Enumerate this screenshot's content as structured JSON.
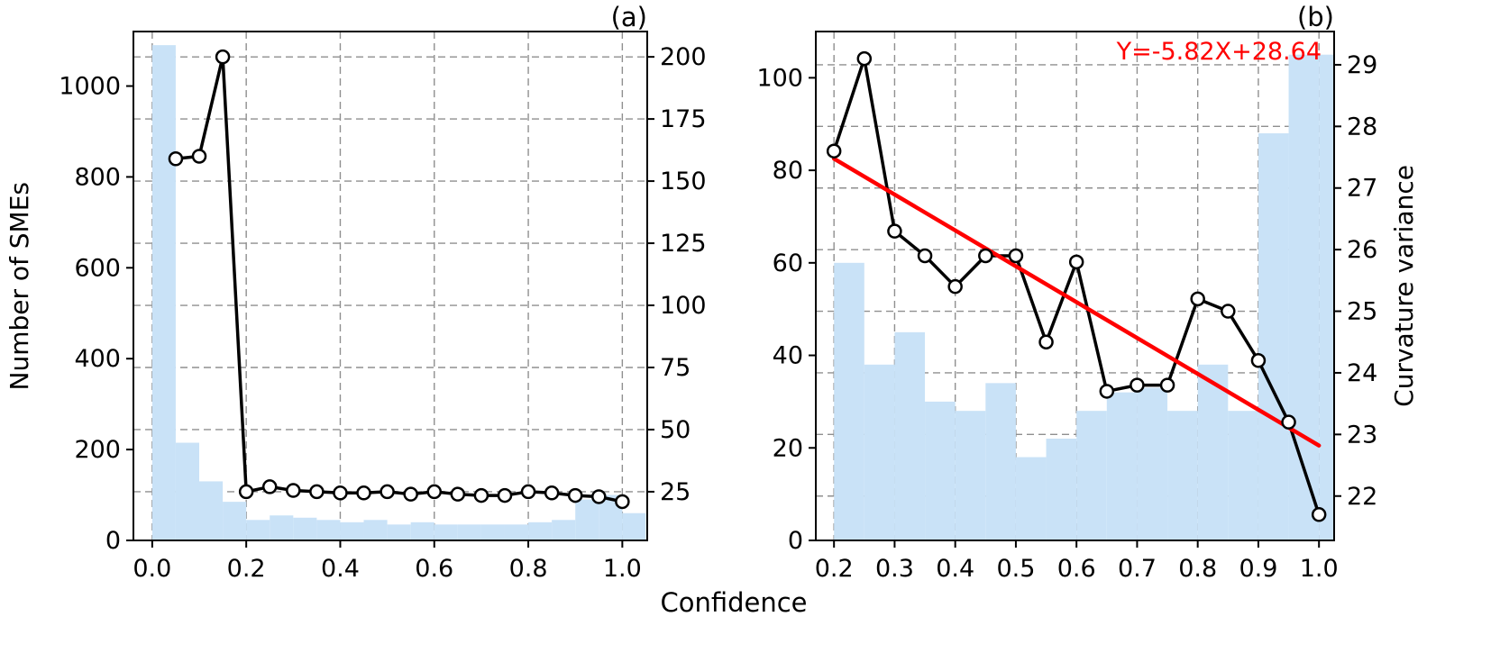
{
  "figure": {
    "xlabel": "Confidence",
    "colors": {
      "bar": "#c9e2f7",
      "line": "#000000",
      "fit": "#ff0000",
      "grid": "#8f8f8f"
    }
  },
  "chart_data": [
    {
      "id": "a",
      "type": "bar+line",
      "title": "(a)",
      "ylabel_left": "Number of SMEs",
      "xlim": [
        -0.04,
        1.053
      ],
      "ylim_left": [
        0,
        1120
      ],
      "ylim_right": [
        5.4,
        210.2
      ],
      "xticks": [
        0.0,
        0.2,
        0.4,
        0.6,
        0.8,
        1.0
      ],
      "xtick_labels": [
        "0.0",
        "0.2",
        "0.4",
        "0.6",
        "0.8",
        "1.0"
      ],
      "yticks_left": [
        0,
        200,
        400,
        600,
        800,
        1000
      ],
      "yticks_right": [
        25,
        50,
        75,
        100,
        125,
        150,
        175,
        200
      ],
      "bars": {
        "bin_width": 0.05,
        "lefts": [
          0.0,
          0.05,
          0.1,
          0.15,
          0.2,
          0.25,
          0.3,
          0.35,
          0.4,
          0.45,
          0.5,
          0.55,
          0.6,
          0.65,
          0.7,
          0.75,
          0.8,
          0.85,
          0.9,
          0.95,
          1.0
        ],
        "heights": [
          1090,
          215,
          130,
          85,
          45,
          55,
          50,
          45,
          40,
          45,
          35,
          40,
          35,
          35,
          35,
          35,
          40,
          45,
          90,
          100,
          60
        ]
      },
      "line": {
        "axis": "right",
        "x": [
          0.05,
          0.1,
          0.15,
          0.2,
          0.25,
          0.3,
          0.35,
          0.4,
          0.45,
          0.5,
          0.55,
          0.6,
          0.65,
          0.7,
          0.75,
          0.8,
          0.85,
          0.9,
          0.95,
          1.0
        ],
        "y": [
          159,
          160,
          200,
          25,
          27,
          25.5,
          25,
          24.5,
          24.5,
          25,
          24,
          25,
          24,
          23.5,
          23.5,
          25,
          24.5,
          23.5,
          23,
          21
        ]
      }
    },
    {
      "id": "b",
      "type": "bar+line",
      "title": "(b)",
      "ylabel_right": "Curvature variance",
      "xlim": [
        0.17,
        1.025
      ],
      "ylim_left": [
        0,
        110
      ],
      "ylim_right": [
        21.28,
        29.54
      ],
      "xticks": [
        0.2,
        0.3,
        0.4,
        0.5,
        0.6,
        0.7,
        0.8,
        0.9,
        1.0
      ],
      "xtick_labels": [
        "0.2",
        "0.3",
        "0.4",
        "0.5",
        "0.6",
        "0.7",
        "0.8",
        "0.9",
        "1.0"
      ],
      "yticks_left": [
        0,
        20,
        40,
        60,
        80,
        100
      ],
      "yticks_right": [
        22,
        23,
        24,
        25,
        26,
        27,
        28,
        29
      ],
      "bars": {
        "bin_width": 0.05,
        "lefts": [
          0.2,
          0.25,
          0.3,
          0.35,
          0.4,
          0.45,
          0.5,
          0.55,
          0.6,
          0.65,
          0.7,
          0.75,
          0.8,
          0.85,
          0.9,
          0.95,
          1.0
        ],
        "heights": [
          60,
          38,
          45,
          30,
          28,
          34,
          18,
          22,
          28,
          32,
          33,
          28,
          38,
          28,
          88,
          105,
          105
        ]
      },
      "line": {
        "axis": "right",
        "x": [
          0.2,
          0.25,
          0.3,
          0.35,
          0.4,
          0.45,
          0.5,
          0.55,
          0.6,
          0.65,
          0.7,
          0.75,
          0.8,
          0.85,
          0.9,
          0.95,
          1.0
        ],
        "y": [
          27.6,
          29.1,
          26.3,
          25.9,
          25.4,
          25.9,
          25.9,
          24.5,
          25.8,
          23.7,
          23.8,
          23.8,
          25.2,
          25.0,
          24.2,
          23.2,
          21.7
        ]
      },
      "fit": {
        "label": "Y=-5.82X+28.64",
        "slope": -5.82,
        "intercept": 28.64,
        "x_range": [
          0.2,
          1.0
        ]
      }
    }
  ]
}
